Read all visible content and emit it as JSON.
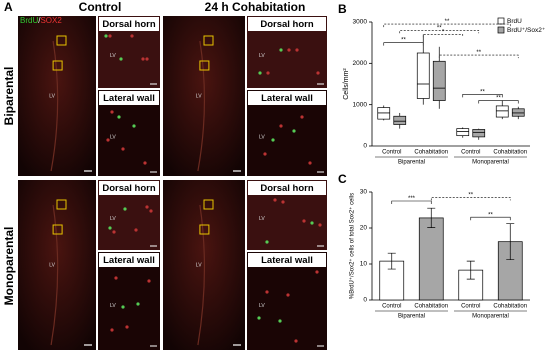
{
  "panel_letters": [
    "A",
    "B",
    "C"
  ],
  "figure_a": {
    "stain_brdu": "BrdU",
    "stain_sep": "/",
    "stain_sox2": "SOX2",
    "columns": [
      "Control",
      "24 h Cohabitation"
    ],
    "rows": [
      "Biparental",
      "Monoparental"
    ],
    "insets": [
      "Dorsal horn",
      "Lateral wall"
    ],
    "lv": "LV"
  },
  "chart_data": [
    {
      "type": "box",
      "y_label": "Cells/mm²",
      "categories": [
        "Control",
        "Cohabitation",
        "Control",
        "Cohabitation"
      ],
      "groups": [
        "Biparental",
        "Monoparental"
      ],
      "series": [
        {
          "name": "BrdU",
          "color": "#ffffff",
          "values": [
            [
              620,
              650,
              800,
              930,
              980
            ],
            [
              1000,
              1150,
              1500,
              2250,
              2700
            ],
            [
              200,
              250,
              350,
              420,
              450
            ],
            [
              650,
              700,
              850,
              970,
              1100
            ]
          ]
        },
        {
          "name": "BrdU⁺/Sox2⁺",
          "color": "#a6a6a6",
          "values": [
            [
              420,
              520,
              600,
              720,
              800
            ],
            [
              900,
              1100,
              1400,
              2050,
              2400
            ],
            [
              150,
              220,
              330,
              400,
              420
            ],
            [
              650,
              720,
              800,
              900,
              950
            ]
          ]
        }
      ],
      "ylim": [
        0,
        3000
      ],
      "yticks": [
        0,
        1000,
        2000,
        3000
      ],
      "annotations": [
        "**",
        "**",
        "*",
        "**",
        "**",
        "**",
        "**"
      ]
    },
    {
      "type": "bar",
      "y_label": "%BrdU⁺/Sox2⁺ cells of total Sox2⁺ cells",
      "categories": [
        "Control",
        "Cohabitation",
        "Control",
        "Cohabitation"
      ],
      "groups": [
        "Biparental",
        "Monoparental"
      ],
      "values": [
        10.8,
        22.8,
        8.3,
        16.2
      ],
      "errors": [
        2.2,
        2.7,
        2.5,
        5.0
      ],
      "colors": [
        "#ffffff",
        "#a6a6a6",
        "#ffffff",
        "#a6a6a6"
      ],
      "ylim": [
        0,
        30
      ],
      "yticks": [
        0,
        10,
        20,
        30
      ],
      "annotations": [
        "***",
        "**",
        "**"
      ]
    }
  ]
}
